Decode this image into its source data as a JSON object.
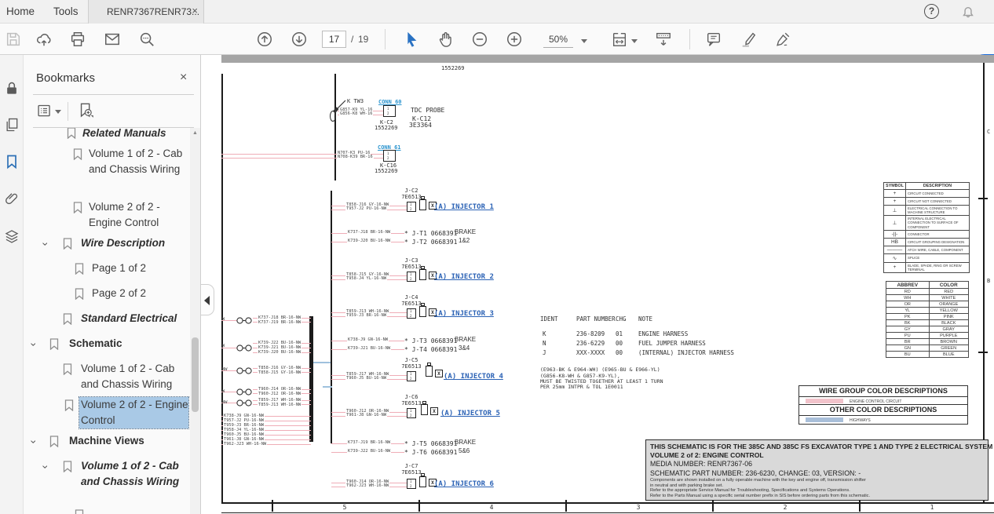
{
  "tab_bar": {
    "home": "Home",
    "tools": "Tools",
    "document_tab": "RENR7367RENR73...",
    "close_glyph": "×"
  },
  "toolbar": {
    "page_current": "17",
    "page_sep": "/",
    "page_total": "19",
    "zoom_value": "50%"
  },
  "bookmarks_panel": {
    "title": "Bookmarks",
    "close_glyph": "×",
    "items": [
      {
        "label": "Related Manuals"
      },
      {
        "label": "Volume 1 of 2 - Cab and Chassis Wiring"
      },
      {
        "label": "Volume 2 of 2 - Engine Control"
      },
      {
        "label": "Wire Description"
      },
      {
        "label": "Page 1 of 2"
      },
      {
        "label": "Page 2 of 2"
      },
      {
        "label": "Standard Electrical"
      },
      {
        "label": "Schematic"
      },
      {
        "label": "Volume 1 of 2 - Cab and Chassis Wiring"
      },
      {
        "label": "Volume 2 of 2 - Engine Control",
        "selected": true
      },
      {
        "label": "Machine Views"
      },
      {
        "label": "Volume 1 of 2 - Cab and Chassis Wiring"
      }
    ]
  },
  "schematic": {
    "top_ref": "1552269",
    "pin1": "1",
    "pin2": "2",
    "tdc_probe": {
      "probe_label": "K TW3",
      "conn_link": "CONN 60",
      "wire1": "G857-K9 YL-16",
      "wire2": "G856-K8 WH-16",
      "name": "TDC PROBE",
      "ref1": "K-C12",
      "ref2": "3E3364",
      "conn_id": "K-C2",
      "conn_part": "1552269"
    },
    "conn61": {
      "conn_link": "CONN 61",
      "wire1": "N707-K3 PU-16",
      "wire2": "N708-K39 BR-16",
      "conn_id": "K-C16",
      "conn_part": "1552269"
    },
    "injectors": [
      {
        "conn": "J-C2",
        "part": "7E6513",
        "wire1": "T858-J16 GY-16-NW",
        "wire2": "T957-J2 PU-16-NW",
        "link": "(A) INJECTOR 1"
      },
      {
        "conn": "J-C3",
        "part": "7E6513",
        "wire1": "T858-J15 GY-16-NW",
        "wire2": "T958-J4 YL-16-NW",
        "link": "(A) INJECTOR 2"
      },
      {
        "conn": "J-C4",
        "part": "7E6513",
        "wire1": "T859-J13 WH-16-NW",
        "wire2": "T959-J3 BR-16-NW",
        "link": "(A) INJECTOR 3"
      },
      {
        "conn": "J-C5",
        "part": "7E6513",
        "wire1": "T859-J17 WH-16-NW",
        "wire2": "T960-J5 BU-16-NW",
        "link": "(A) INJECTOR 4"
      },
      {
        "conn": "J-C6",
        "part": "7E6513",
        "wire1": "T960-J12 OR-16-NW",
        "wire2": "T961-J8 GN-16-NW",
        "link": "(A) INJECTOR 5"
      },
      {
        "conn": "J-C7",
        "part": "7E6513",
        "wire1": "T960-J14 OR-16-NW",
        "wire2": "T962-J23 WH-16-NW",
        "link": "(A) INJECTOR 6"
      }
    ],
    "brake_pairs": [
      {
        "wire1": "K737-J18 BR-16-NW",
        "term1": "* J-T1 0668391",
        "wire2": "K739-J20 BU-16-NW",
        "term2": "* J-T2 0668391",
        "label": "BRAKE",
        "nums": "1&2"
      },
      {
        "wire1": "K738-J9 GN-16-NW",
        "term1": "* J-T3 0668391",
        "wire2": "K739-J21 BU-16-NW",
        "term2": "* J-T4 0668391",
        "label": "BRAKE",
        "nums": "3&4"
      },
      {
        "wire1": "K737-J19 BR-16-NW",
        "term1": "* J-T5 0668391",
        "wire2": "K739-J22 BU-16-NW",
        "term2": "* J-T6 0668391",
        "label": "BRAKE",
        "nums": "5&6"
      }
    ],
    "splice_groups": [
      {
        "wires": [
          "K737-J18 BR-16-NW",
          "K737-J19 BR-16-NW"
        ]
      },
      {
        "wires": [
          "K739-J22 BU-16-NW",
          "K739-J21 BU-16-NW",
          "K739-J20 BU-16-NW"
        ]
      },
      {
        "wires": [
          "T858-J16 GY-16-NW",
          "T858-J15 GY-16-NW"
        ]
      },
      {
        "wires": [
          "T960-J14 OR-16-NW",
          "T960-J12 OR-16-NW"
        ]
      },
      {
        "wires": [
          "T859-J17 WH-16-NW",
          "T859-J13 WH-16-NW"
        ]
      }
    ],
    "edge_fragments": [
      "W",
      "W",
      "NW",
      "W",
      "NW"
    ],
    "bottom_wires": [
      "K738-J9 GN-16-NW",
      "T957-J2 PU-16-NW",
      "T959-J3 BR-16-NW",
      "T958-J4 YL-16-NW",
      "T960-J5 BU-16-NW",
      "T961-J8 GN-16-NW",
      "T962-J23 WH-16-NW"
    ],
    "ident_table": {
      "headers": [
        "IDENT",
        "PART NUMBER",
        "CHG",
        "NOTE"
      ],
      "rows": [
        [
          "K",
          "236-8209",
          "01",
          "ENGINE HARNESS"
        ],
        [
          "N",
          "236-6229",
          "00",
          "FUEL JUMPER HARNESS"
        ],
        [
          "J",
          "XXX-XXXX",
          "00",
          "(INTERNAL) INJECTOR HARNESS"
        ]
      ]
    },
    "twist_note": [
      "(E963-BK & E964-WH) (E965-BU & E966-YL)",
      "(G856-K8-WH & G857-K9-YL),",
      "MUST BE TWISTED TOGETHER AT LEAST 1 TURN",
      "PER 25mm  INTPR & TOL  1E0011"
    ],
    "symbol_table": {
      "headers": [
        "SYMBOL",
        "DESCRIPTION"
      ],
      "rows": [
        [
          "+",
          "CIRCUIT CONNECTED"
        ],
        [
          "+",
          "CIRCUIT NOT CONNECTED"
        ],
        [
          "⊥",
          "ELECTRICAL CONNECTION TO MACHINE STRUCTURE"
        ],
        [
          "⊥",
          "INTERNAL ELECTRICAL CONNECTION TO SURFACE OF COMPONENT"
        ],
        [
          "-||-",
          "CONNECTOR"
        ],
        [
          "HB",
          "CIRCUIT GROUPING DESIGNATION"
        ],
        [
          "———",
          "ATCH WIRE, CABLE, COMPONENT"
        ],
        [
          "∿",
          "SPLICE"
        ],
        [
          "+",
          "BLADE, SPADE, RING OR SCREW TERMINAL"
        ]
      ]
    },
    "color_table": {
      "headers": [
        "ABBREV",
        "COLOR"
      ],
      "rows": [
        [
          "RD",
          "RED"
        ],
        [
          "WH",
          "WHITE"
        ],
        [
          "OR",
          "ORANGE"
        ],
        [
          "YL",
          "YELLOW"
        ],
        [
          "PK",
          "PINK"
        ],
        [
          "BK",
          "BLACK"
        ],
        [
          "GY",
          "GRAY"
        ],
        [
          "PU",
          "PURPLE"
        ],
        [
          "BR",
          "BROWN"
        ],
        [
          "GN",
          "GREEN"
        ],
        [
          "BU",
          "BLUE"
        ]
      ]
    },
    "color_descriptions": {
      "title1": "WIRE GROUP COLOR DESCRIPTIONS",
      "row1": "ENGINE CONTROL CIRCUIT",
      "title2": "OTHER COLOR DESCRIPTIONS",
      "row2": "HIGHWAYS",
      "swatch_pink": "#f2c3cb",
      "swatch_blue": "#a9bfd9"
    },
    "info_box": {
      "line1": "THIS SCHEMATIC IS FOR THE 385C AND 385C FS EXCAVATOR TYPE 1 AND TYPE 2 ELECTRICAL SYSTEM",
      "line2": "VOLUME 2 of 2: ENGINE CONTROL",
      "line3": "MEDIA NUMBER: RENR7367-06",
      "line4": "SCHEMATIC PART NUMBER: 236-6230, CHANGE: 03, VERSION: -",
      "note1": "Components are shown installed on a fully operable machine with the key and engine off, transmission shifter",
      "note2": "in neutral and with parking brake set.",
      "note3": "Refer to the appropriate Service Manual for Troubleshooting, Specifications and Systems Operations.",
      "note4": "Refer to the Parts Manual using a specific serial number prefix in SIS before ordering parts from this schematic."
    },
    "ruler_numbers": [
      "5",
      "4",
      "3",
      "2",
      "1"
    ],
    "row_letters": [
      "C",
      "B"
    ]
  }
}
